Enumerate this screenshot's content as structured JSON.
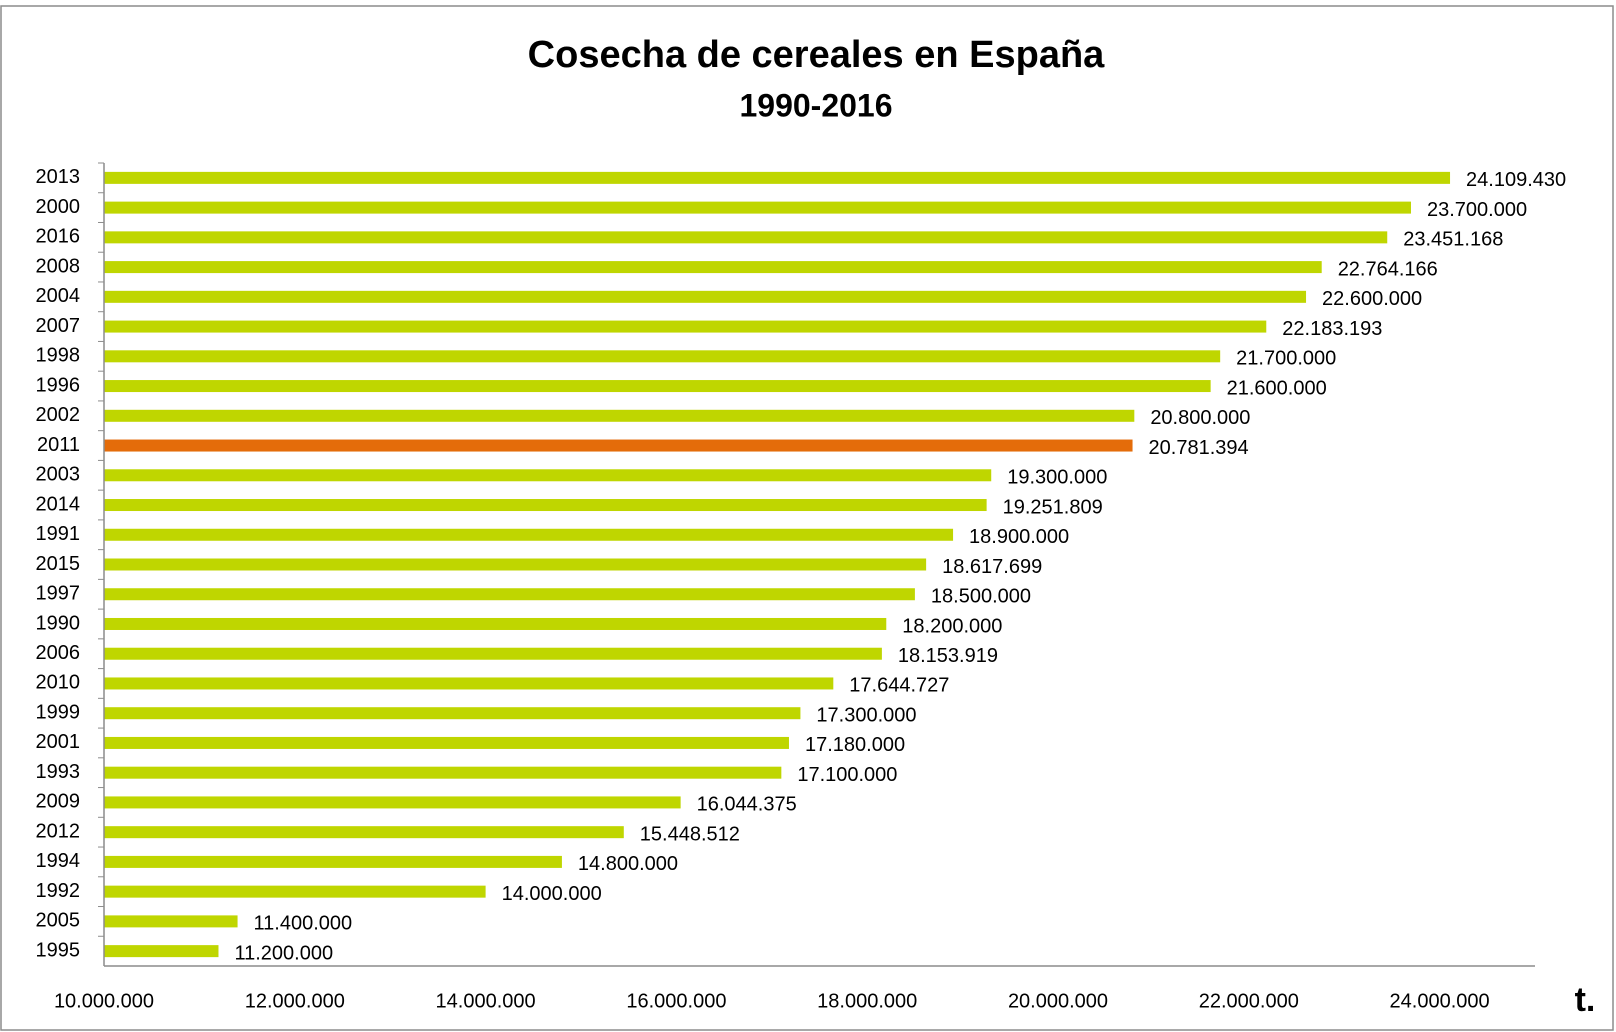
{
  "chart_data": {
    "type": "barh",
    "title": "Cosecha de cereales en España",
    "subtitle": "1990-2016",
    "x_label": "t.",
    "categories": [
      "2013",
      "2000",
      "2016",
      "2008",
      "2004",
      "2007",
      "1998",
      "1996",
      "2002",
      "2011",
      "2003",
      "2014",
      "1991",
      "2015",
      "1997",
      "1990",
      "2006",
      "2010",
      "1999",
      "2001",
      "1993",
      "2009",
      "2012",
      "1994",
      "1992",
      "2005",
      "1995"
    ],
    "values": [
      24109430,
      23700000,
      23451168,
      22764166,
      22600000,
      22183193,
      21700000,
      21600000,
      20800000,
      20781394,
      19300000,
      19251809,
      18900000,
      18617699,
      18500000,
      18200000,
      18153919,
      17644727,
      17300000,
      17180000,
      17100000,
      16044375,
      15448512,
      14800000,
      14000000,
      11400000,
      11200000
    ],
    "value_labels": [
      "24.109.430",
      "23.700.000",
      "23.451.168",
      "22.764.166",
      "22.600.000",
      "22.183.193",
      "21.700.000",
      "21.600.000",
      "20.800.000",
      "20.781.394",
      "19.300.000",
      "19.251.809",
      "18.900.000",
      "18.617.699",
      "18.500.000",
      "18.200.000",
      "18.153.919",
      "17.644.727",
      "17.300.000",
      "17.180.000",
      "17.100.000",
      "16.044.375",
      "15.448.512",
      "14.800.000",
      "14.000.000",
      "11.400.000",
      "11.200.000"
    ],
    "colors": [
      "#bfd600",
      "#bfd600",
      "#bfd600",
      "#bfd600",
      "#bfd600",
      "#bfd600",
      "#bfd600",
      "#bfd600",
      "#bfd600",
      "#e46c0a",
      "#bfd600",
      "#bfd600",
      "#bfd600",
      "#bfd600",
      "#bfd600",
      "#bfd600",
      "#bfd600",
      "#bfd600",
      "#bfd600",
      "#bfd600",
      "#bfd600",
      "#bfd600",
      "#bfd600",
      "#bfd600",
      "#bfd600",
      "#bfd600",
      "#bfd600"
    ],
    "xlim": [
      10000000,
      25000000
    ],
    "xticks": [
      {
        "value": 10000000,
        "label": "10.000.000"
      },
      {
        "value": 12000000,
        "label": "12.000.000"
      },
      {
        "value": 14000000,
        "label": "14.000.000"
      },
      {
        "value": 16000000,
        "label": "16.000.000"
      },
      {
        "value": 18000000,
        "label": "18.000.000"
      },
      {
        "value": 20000000,
        "label": "20.000.000"
      },
      {
        "value": 22000000,
        "label": "22.000.000"
      },
      {
        "value": 24000000,
        "label": "24.000.000"
      }
    ],
    "grid": false
  }
}
